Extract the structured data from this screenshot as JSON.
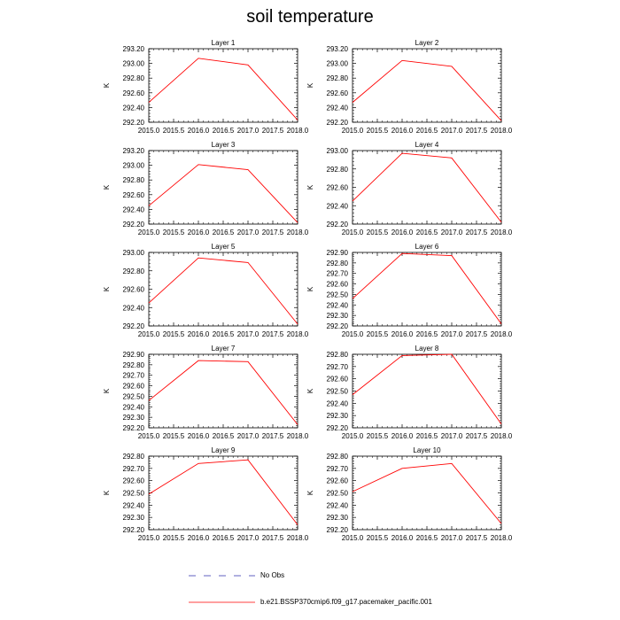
{
  "figure": {
    "title": "soil temperature",
    "legend": [
      {
        "label": "No Obs",
        "style": "dashed",
        "color": "#6060c0"
      },
      {
        "label": "b.e21.BSSP370cmip6.f09_g17.pacemaker_pacific.001",
        "style": "solid",
        "color": "#ff0000"
      }
    ]
  },
  "chart_data": [
    {
      "type": "line",
      "title": "Layer 1",
      "ylabel": "K",
      "xlabel": "",
      "x": [
        2015,
        2016,
        2017,
        2018
      ],
      "xlim": [
        2015,
        2018
      ],
      "xticks": [
        "2015.0",
        "2015.5",
        "2016.0",
        "2016.5",
        "2017.0",
        "2017.5",
        "2018.0"
      ],
      "ylim": [
        292.2,
        293.2
      ],
      "yticks": [
        "292.20",
        "292.40",
        "292.60",
        "292.80",
        "293.00",
        "293.20"
      ],
      "series": [
        {
          "name": "b.e21.BSSP370cmip6.f09_g17.pacemaker_pacific.001",
          "color": "#ff0000",
          "values": [
            292.47,
            293.07,
            292.98,
            292.23
          ]
        }
      ]
    },
    {
      "type": "line",
      "title": "Layer 2",
      "ylabel": "K",
      "xlabel": "",
      "x": [
        2015,
        2016,
        2017,
        2018
      ],
      "xlim": [
        2015,
        2018
      ],
      "xticks": [
        "2015.0",
        "2015.5",
        "2016.0",
        "2016.5",
        "2017.0",
        "2017.5",
        "2018.0"
      ],
      "ylim": [
        292.2,
        293.2
      ],
      "yticks": [
        "292.20",
        "292.40",
        "292.60",
        "292.80",
        "293.00",
        "293.20"
      ],
      "series": [
        {
          "name": "b.e21.BSSP370cmip6.f09_g17.pacemaker_pacific.001",
          "color": "#ff0000",
          "values": [
            292.47,
            293.04,
            292.96,
            292.22
          ]
        }
      ]
    },
    {
      "type": "line",
      "title": "Layer 3",
      "ylabel": "K",
      "xlabel": "",
      "x": [
        2015,
        2016,
        2017,
        2018
      ],
      "xlim": [
        2015,
        2018
      ],
      "xticks": [
        "2015.0",
        "2015.5",
        "2016.0",
        "2016.5",
        "2017.0",
        "2017.5",
        "2018.0"
      ],
      "ylim": [
        292.2,
        293.2
      ],
      "yticks": [
        "292.20",
        "292.40",
        "292.60",
        "292.80",
        "293.00",
        "293.20"
      ],
      "series": [
        {
          "name": "b.e21.BSSP370cmip6.f09_g17.pacemaker_pacific.001",
          "color": "#ff0000",
          "values": [
            292.45,
            293.01,
            292.94,
            292.22
          ]
        }
      ]
    },
    {
      "type": "line",
      "title": "Layer 4",
      "ylabel": "K",
      "xlabel": "",
      "x": [
        2015,
        2016,
        2017,
        2018
      ],
      "xlim": [
        2015,
        2018
      ],
      "xticks": [
        "2015.0",
        "2015.5",
        "2016.0",
        "2016.5",
        "2017.0",
        "2017.5",
        "2018.0"
      ],
      "ylim": [
        292.2,
        293.0
      ],
      "yticks": [
        "292.20",
        "292.40",
        "292.60",
        "292.80",
        "293.00"
      ],
      "series": [
        {
          "name": "b.e21.BSSP370cmip6.f09_g17.pacemaker_pacific.001",
          "color": "#ff0000",
          "values": [
            292.45,
            292.97,
            292.92,
            292.22
          ]
        }
      ]
    },
    {
      "type": "line",
      "title": "Layer 5",
      "ylabel": "K",
      "xlabel": "",
      "x": [
        2015,
        2016,
        2017,
        2018
      ],
      "xlim": [
        2015,
        2018
      ],
      "xticks": [
        "2015.0",
        "2015.5",
        "2016.0",
        "2016.5",
        "2017.0",
        "2017.5",
        "2018.0"
      ],
      "ylim": [
        292.2,
        293.0
      ],
      "yticks": [
        "292.20",
        "292.40",
        "292.60",
        "292.80",
        "293.00"
      ],
      "series": [
        {
          "name": "b.e21.BSSP370cmip6.f09_g17.pacemaker_pacific.001",
          "color": "#ff0000",
          "values": [
            292.45,
            292.94,
            292.89,
            292.22
          ]
        }
      ]
    },
    {
      "type": "line",
      "title": "Layer 6",
      "ylabel": "K",
      "xlabel": "",
      "x": [
        2015,
        2016,
        2017,
        2018
      ],
      "xlim": [
        2015,
        2018
      ],
      "xticks": [
        "2015.0",
        "2015.5",
        "2016.0",
        "2016.5",
        "2017.0",
        "2017.5",
        "2018.0"
      ],
      "ylim": [
        292.2,
        292.9
      ],
      "yticks": [
        "292.20",
        "292.30",
        "292.40",
        "292.50",
        "292.60",
        "292.70",
        "292.80",
        "292.90"
      ],
      "series": [
        {
          "name": "b.e21.BSSP370cmip6.f09_g17.pacemaker_pacific.001",
          "color": "#ff0000",
          "values": [
            292.46,
            292.89,
            292.87,
            292.22
          ]
        }
      ]
    },
    {
      "type": "line",
      "title": "Layer 7",
      "ylabel": "K",
      "xlabel": "",
      "x": [
        2015,
        2016,
        2017,
        2018
      ],
      "xlim": [
        2015,
        2018
      ],
      "xticks": [
        "2015.0",
        "2015.5",
        "2016.0",
        "2016.5",
        "2017.0",
        "2017.5",
        "2018.0"
      ],
      "ylim": [
        292.2,
        292.9
      ],
      "yticks": [
        "292.20",
        "292.30",
        "292.40",
        "292.50",
        "292.60",
        "292.70",
        "292.80",
        "292.90"
      ],
      "series": [
        {
          "name": "b.e21.BSSP370cmip6.f09_g17.pacemaker_pacific.001",
          "color": "#ff0000",
          "values": [
            292.46,
            292.84,
            292.83,
            292.23
          ]
        }
      ]
    },
    {
      "type": "line",
      "title": "Layer 8",
      "ylabel": "K",
      "xlabel": "",
      "x": [
        2015,
        2016,
        2017,
        2018
      ],
      "xlim": [
        2015,
        2018
      ],
      "xticks": [
        "2015.0",
        "2015.5",
        "2016.0",
        "2016.5",
        "2017.0",
        "2017.5",
        "2018.0"
      ],
      "ylim": [
        292.2,
        292.8
      ],
      "yticks": [
        "292.20",
        "292.30",
        "292.40",
        "292.50",
        "292.60",
        "292.70",
        "292.80"
      ],
      "series": [
        {
          "name": "b.e21.BSSP370cmip6.f09_g17.pacemaker_pacific.001",
          "color": "#ff0000",
          "values": [
            292.47,
            292.79,
            292.8,
            292.23
          ]
        }
      ]
    },
    {
      "type": "line",
      "title": "Layer 9",
      "ylabel": "K",
      "xlabel": "",
      "x": [
        2015,
        2016,
        2017,
        2018
      ],
      "xlim": [
        2015,
        2018
      ],
      "xticks": [
        "2015.0",
        "2015.5",
        "2016.0",
        "2016.5",
        "2017.0",
        "2017.5",
        "2018.0"
      ],
      "ylim": [
        292.2,
        292.8
      ],
      "yticks": [
        "292.20",
        "292.30",
        "292.40",
        "292.50",
        "292.60",
        "292.70",
        "292.80"
      ],
      "series": [
        {
          "name": "b.e21.BSSP370cmip6.f09_g17.pacemaker_pacific.001",
          "color": "#ff0000",
          "values": [
            292.49,
            292.74,
            292.77,
            292.24
          ]
        }
      ]
    },
    {
      "type": "line",
      "title": "Layer 10",
      "ylabel": "K",
      "xlabel": "",
      "x": [
        2015,
        2016,
        2017,
        2018
      ],
      "xlim": [
        2015,
        2018
      ],
      "xticks": [
        "2015.0",
        "2015.5",
        "2016.0",
        "2016.5",
        "2017.0",
        "2017.5",
        "2018.0"
      ],
      "ylim": [
        292.2,
        292.8
      ],
      "yticks": [
        "292.20",
        "292.30",
        "292.40",
        "292.50",
        "292.60",
        "292.70",
        "292.80"
      ],
      "series": [
        {
          "name": "b.e21.BSSP370cmip6.f09_g17.pacemaker_pacific.001",
          "color": "#ff0000",
          "values": [
            292.51,
            292.7,
            292.74,
            292.25
          ]
        }
      ]
    }
  ]
}
